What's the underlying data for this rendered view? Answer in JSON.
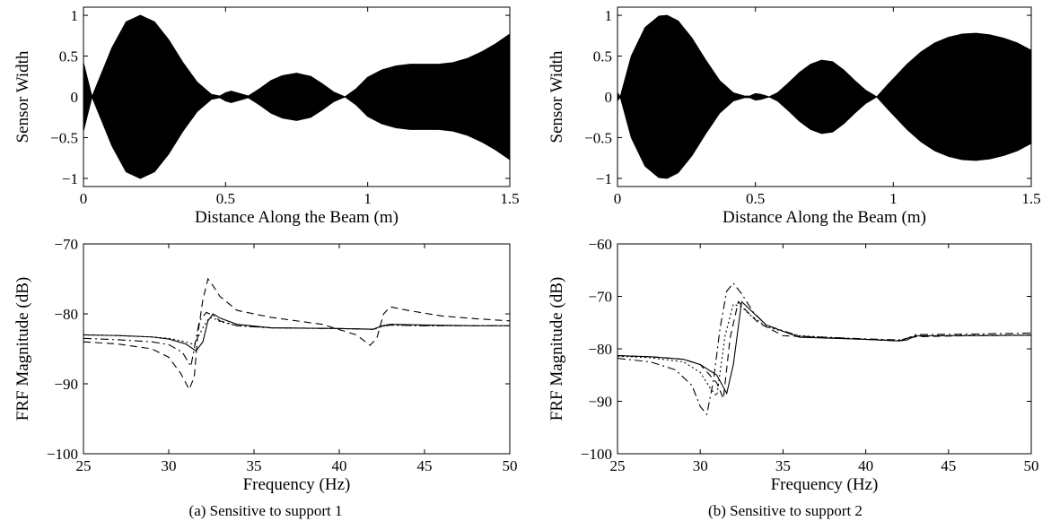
{
  "chart_data": [
    {
      "type": "area",
      "panel": "a",
      "xlabel": "Distance Along the Beam (m)",
      "ylabel": "Sensor Width",
      "xlim": [
        0,
        1.5
      ],
      "ylim": [
        -1.1,
        1.1
      ],
      "xticks": [
        "0",
        "0.5",
        "1",
        "1.5"
      ],
      "yticks": [
        "1",
        "0.5",
        "0",
        "−0.5",
        "−1"
      ],
      "fill": "symmetric envelope (± width), solid black",
      "x": [
        0,
        0.03,
        0.1,
        0.15,
        0.2,
        0.25,
        0.3,
        0.35,
        0.4,
        0.45,
        0.48,
        0.5,
        0.52,
        0.55,
        0.58,
        0.62,
        0.66,
        0.7,
        0.75,
        0.8,
        0.84,
        0.88,
        0.92,
        0.96,
        1.0,
        1.05,
        1.1,
        1.15,
        1.2,
        1.25,
        1.3,
        1.35,
        1.4,
        1.45,
        1.5
      ],
      "y": [
        0.42,
        0,
        0.6,
        0.92,
        1.0,
        0.92,
        0.7,
        0.42,
        0.18,
        0.03,
        0.01,
        0.05,
        0.07,
        0.04,
        0.01,
        0.1,
        0.2,
        0.26,
        0.29,
        0.25,
        0.16,
        0.06,
        0.0,
        0.1,
        0.24,
        0.33,
        0.38,
        0.4,
        0.4,
        0.4,
        0.42,
        0.47,
        0.55,
        0.65,
        0.77
      ]
    },
    {
      "type": "line",
      "panel": "a",
      "xlabel": "Frequency (Hz)",
      "ylabel": "FRF Magnitude (dB)",
      "xlim": [
        25,
        50
      ],
      "ylim": [
        -100,
        -70
      ],
      "xticks": [
        "25",
        "30",
        "35",
        "40",
        "45",
        "50"
      ],
      "yticks": [
        "−70",
        "−80",
        "−90",
        "−100"
      ],
      "series": [
        {
          "style": "solid",
          "x": [
            25,
            27,
            29,
            30,
            31,
            31.6,
            32,
            32.3,
            32.6,
            33,
            34,
            36,
            40,
            42,
            42.5,
            43,
            45,
            48,
            50
          ],
          "y": [
            -83,
            -83.1,
            -83.3,
            -83.6,
            -84.3,
            -85.3,
            -84,
            -81,
            -80,
            -80.6,
            -81.5,
            -82,
            -82.1,
            -82.2,
            -81.7,
            -81.5,
            -81.6,
            -81.7,
            -81.7
          ]
        },
        {
          "style": "dashed",
          "x": [
            25,
            27,
            29,
            30,
            30.7,
            31.2,
            31.5,
            31.7,
            32,
            32.3,
            32.6,
            33,
            34,
            36,
            39,
            41,
            41.8,
            42.2,
            42.6,
            43,
            44,
            46,
            48,
            50
          ],
          "y": [
            -84,
            -84.3,
            -85,
            -86.2,
            -88.5,
            -90.8,
            -89,
            -83,
            -78,
            -75,
            -76,
            -77.5,
            -79.5,
            -80.5,
            -81.5,
            -83,
            -84.5,
            -83.5,
            -80,
            -79,
            -79.5,
            -80.3,
            -80.7,
            -81
          ]
        },
        {
          "style": "dash-dot",
          "x": [
            25,
            27,
            29,
            30,
            30.8,
            31.3,
            31.8,
            32.2,
            32.6,
            33,
            34,
            36,
            40,
            42,
            42.5,
            43,
            45,
            48,
            50
          ],
          "y": [
            -83.5,
            -83.7,
            -84,
            -84.4,
            -85.5,
            -87.5,
            -81,
            -79.8,
            -80.2,
            -81,
            -81.7,
            -82,
            -82.1,
            -82.2,
            -81.8,
            -81.6,
            -81.7,
            -81.7,
            -81.7
          ]
        },
        {
          "style": "dotted",
          "x": [
            25,
            27,
            29,
            30,
            31,
            31.5,
            32,
            32.4,
            32.8,
            33,
            34,
            36,
            40,
            42,
            42.5,
            43,
            45,
            48,
            50
          ],
          "y": [
            -83,
            -83.1,
            -83.3,
            -83.5,
            -84,
            -84.4,
            -82,
            -80.5,
            -80.8,
            -81.1,
            -81.7,
            -82,
            -82.1,
            -82.2,
            -81.8,
            -81.6,
            -81.7,
            -81.7,
            -81.7
          ]
        }
      ]
    },
    {
      "type": "area",
      "panel": "b",
      "xlabel": "Distance Along the Beam (m)",
      "ylabel": "Sensor Width",
      "xlim": [
        0,
        1.5
      ],
      "ylim": [
        -1.1,
        1.1
      ],
      "xticks": [
        "0",
        "0.5",
        "1",
        "1.5"
      ],
      "yticks": [
        "1",
        "0.5",
        "0",
        "−0.5",
        "−1"
      ],
      "fill": "symmetric envelope (± width), solid black",
      "x": [
        0,
        0.01,
        0.05,
        0.1,
        0.15,
        0.18,
        0.22,
        0.27,
        0.32,
        0.37,
        0.42,
        0.46,
        0.48,
        0.5,
        0.52,
        0.55,
        0.58,
        0.62,
        0.66,
        0.7,
        0.74,
        0.78,
        0.82,
        0.86,
        0.9,
        0.94,
        0.98,
        1.05,
        1.1,
        1.15,
        1.2,
        1.25,
        1.3,
        1.35,
        1.4,
        1.45,
        1.5
      ],
      "y": [
        0.05,
        0,
        0.5,
        0.85,
        0.99,
        1.0,
        0.93,
        0.72,
        0.45,
        0.2,
        0.05,
        0.01,
        0.01,
        0.04,
        0.03,
        0.0,
        0.05,
        0.17,
        0.3,
        0.4,
        0.45,
        0.43,
        0.33,
        0.2,
        0.08,
        0.0,
        0.15,
        0.4,
        0.55,
        0.66,
        0.73,
        0.77,
        0.78,
        0.76,
        0.72,
        0.66,
        0.57
      ]
    },
    {
      "type": "line",
      "panel": "b",
      "xlabel": "Frequency (Hz)",
      "ylabel": "FRF Magnitude (dB)",
      "xlim": [
        25,
        50
      ],
      "ylim": [
        -100,
        -60
      ],
      "xticks": [
        "25",
        "30",
        "35",
        "40",
        "45",
        "50"
      ],
      "yticks": [
        "−60",
        "−70",
        "−80",
        "−90",
        "−100"
      ],
      "series": [
        {
          "style": "solid",
          "x": [
            25,
            27,
            29,
            30,
            31,
            31.6,
            32,
            32.5,
            33,
            34,
            36,
            40,
            42,
            42.5,
            43,
            46,
            50
          ],
          "y": [
            -81.3,
            -81.5,
            -82,
            -83,
            -85,
            -88.5,
            -83,
            -71,
            -72.5,
            -75.5,
            -77.8,
            -78.2,
            -78.5,
            -78.3,
            -77.5,
            -77.5,
            -77.4
          ]
        },
        {
          "style": "dashed",
          "x": [
            25,
            27,
            29,
            30,
            31,
            31.4,
            31.8,
            32.3,
            32.8,
            33.5,
            35,
            40,
            42,
            43,
            46,
            50
          ],
          "y": [
            -81.3,
            -81.5,
            -82,
            -83,
            -86.5,
            -89.5,
            -78,
            -71,
            -72.8,
            -75,
            -77.5,
            -78.2,
            -78.5,
            -77.7,
            -77.5,
            -77.4
          ]
        },
        {
          "style": "dash-dot",
          "x": [
            25,
            27,
            28.5,
            29.5,
            30,
            30.4,
            30.8,
            31.2,
            31.6,
            32,
            32.5,
            33.2,
            34,
            36,
            40,
            42,
            42.5,
            43,
            46,
            50
          ],
          "y": [
            -81.8,
            -82.5,
            -84,
            -87,
            -91,
            -92.5,
            -86,
            -76,
            -69,
            -67.5,
            -69.5,
            -73,
            -75.5,
            -77.6,
            -78.1,
            -78.3,
            -78,
            -77.3,
            -77.2,
            -77
          ]
        },
        {
          "style": "dotted",
          "x": [
            25,
            27,
            29,
            30,
            30.6,
            31,
            31.5,
            32,
            32.5,
            33,
            34,
            36,
            40,
            42,
            43,
            46,
            50
          ],
          "y": [
            -81.4,
            -81.7,
            -82.5,
            -84.5,
            -87.5,
            -89,
            -77.5,
            -71.5,
            -72,
            -73.5,
            -75.8,
            -77.5,
            -78.2,
            -78.4,
            -77.6,
            -77.4,
            -77.4
          ]
        }
      ]
    }
  ],
  "captions": {
    "a": "(a)  Sensitive to support 1",
    "b": "(b)  Sensitive to support 2"
  }
}
